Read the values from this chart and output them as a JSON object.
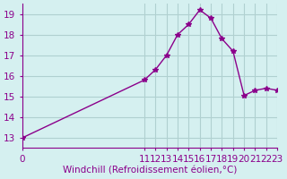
{
  "x": [
    0,
    11,
    12,
    13,
    14,
    15,
    16,
    17,
    18,
    19,
    20,
    21,
    22,
    23
  ],
  "y": [
    13.0,
    15.8,
    16.3,
    17.0,
    18.0,
    18.5,
    19.2,
    18.8,
    17.8,
    17.2,
    15.05,
    15.3,
    15.4,
    15.3
  ],
  "line_color": "#8B008B",
  "marker_color": "#8B008B",
  "bg_color": "#d5f0f0",
  "grid_color": "#b0d0d0",
  "axis_color": "#8B008B",
  "xlabel": "Windchill (Refroidissement éolien,°C)",
  "xlabel_color": "#8B008B",
  "tick_color": "#8B008B",
  "ylim": [
    12.5,
    19.5
  ],
  "xlim": [
    0,
    23
  ],
  "yticks": [
    13,
    14,
    15,
    16,
    17,
    18,
    19
  ],
  "xticks": [
    0,
    11,
    12,
    13,
    14,
    15,
    16,
    17,
    18,
    19,
    20,
    21,
    22,
    23
  ],
  "fontsize": 7.5
}
